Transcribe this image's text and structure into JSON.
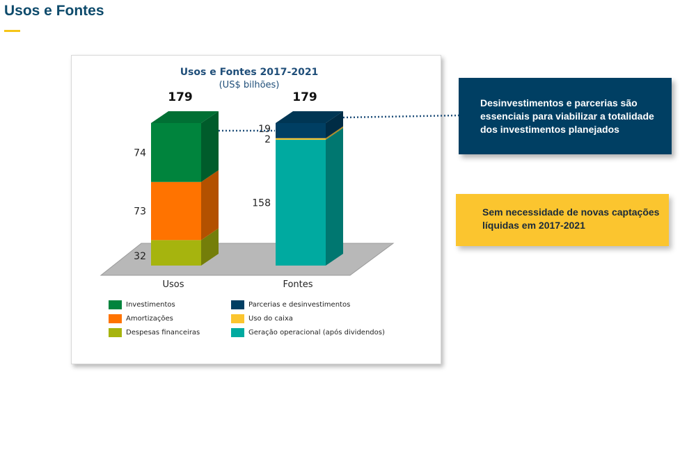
{
  "header": {
    "title": "Usos e Fontes"
  },
  "chart_data": {
    "type": "bar",
    "stacked": true,
    "title": "Usos e Fontes 2017-2021",
    "subtitle": "(US$ bilhões)",
    "categories": [
      "Usos",
      "Fontes"
    ],
    "totals": [
      179,
      179
    ],
    "ylim": [
      0,
      179
    ],
    "legend_position": "bottom",
    "series": [
      {
        "name": "Investimentos",
        "color": "#00843d",
        "values": [
          74,
          0
        ]
      },
      {
        "name": "Amortizações",
        "color": "#ff7300",
        "values": [
          73,
          0
        ]
      },
      {
        "name": "Despesas financeiras",
        "color": "#a6b40e",
        "values": [
          32,
          0
        ]
      },
      {
        "name": "Parcerias e desinvestimentos",
        "color": "#003f63",
        "values": [
          0,
          19
        ]
      },
      {
        "name": "Uso do caixa",
        "color": "#fbc52f",
        "values": [
          0,
          2
        ]
      },
      {
        "name": "Geração operacional  (após dividendos)",
        "color": "#00aaa0",
        "values": [
          0,
          158
        ]
      }
    ],
    "bars": [
      {
        "category": "Usos",
        "total_label": "179",
        "segments": [
          {
            "series": "Despesas financeiras",
            "value": 32,
            "label": "32"
          },
          {
            "series": "Amortizações",
            "value": 73,
            "label": "73"
          },
          {
            "series": "Investimentos",
            "value": 74,
            "label": "74"
          }
        ]
      },
      {
        "category": "Fontes",
        "total_label": "179",
        "segments": [
          {
            "series": "Geração operacional  (após dividendos)",
            "value": 158,
            "label": "158"
          },
          {
            "series": "Uso do caixa",
            "value": 2,
            "label": "2"
          },
          {
            "series": "Parcerias e desinvestimentos",
            "value": 19,
            "label": "19"
          }
        ]
      }
    ],
    "legend": [
      {
        "label": "Investimentos",
        "color": "#00843d"
      },
      {
        "label": "Parcerias e desinvestimentos",
        "color": "#003f63"
      },
      {
        "label": "Amortizações",
        "color": "#ff7300"
      },
      {
        "label": "Uso do caixa",
        "color": "#fbc52f"
      },
      {
        "label": "Despesas financeiras",
        "color": "#a6b40e"
      },
      {
        "label": "Geração operacional  (após dividendos)",
        "color": "#00aaa0"
      }
    ]
  },
  "callouts": {
    "desinvestimentos": "Desinvestimentos e parcerias são essenciais para viabilizar a totalidade dos investimentos planejados",
    "captacoes": "Sem necessidade de novas captações líquidas em 2017-2021"
  }
}
